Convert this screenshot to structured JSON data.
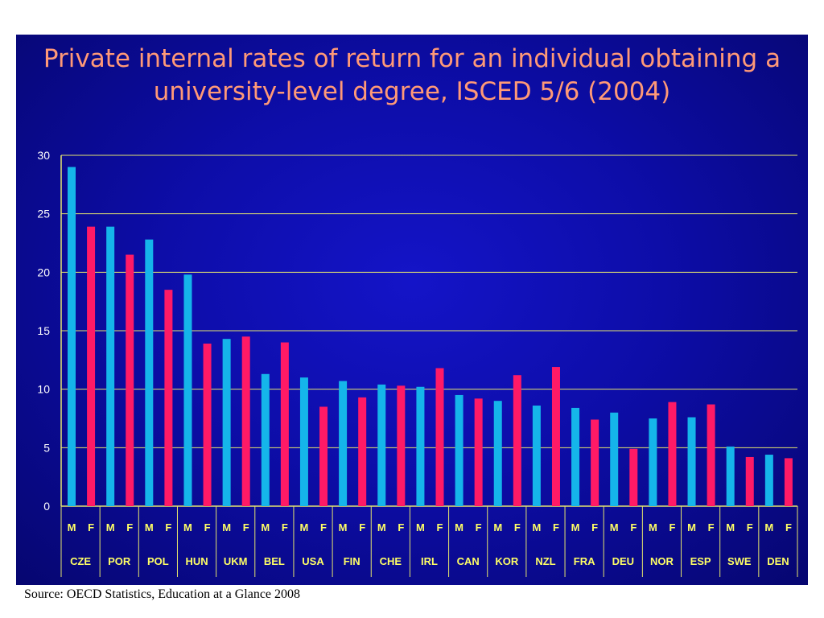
{
  "title": "Private internal rates of return for an individual obtaining a university-level degree, ISCED 5/6 (2004)",
  "source": "Source: OECD Statistics, Education at a Glance 2008",
  "colors": {
    "male": "#15b5ea",
    "female": "#ff1a66",
    "grid": "#e6e66e",
    "label": "#ffff66",
    "background": "#0b0ba6"
  },
  "chart_data": {
    "type": "bar",
    "title": "Private internal rates of return for an individual obtaining a university-level degree, ISCED 5/6 (2004)",
    "xlabel": "",
    "ylabel": "",
    "ylim": [
      0,
      30
    ],
    "yticks": [
      0,
      5,
      10,
      15,
      20,
      25,
      30
    ],
    "grid": true,
    "legend": "none",
    "subcategories": [
      "M",
      "F"
    ],
    "categories": [
      "CZE",
      "POR",
      "POL",
      "HUN",
      "UKM",
      "BEL",
      "USA",
      "FIN",
      "CHE",
      "IRL",
      "CAN",
      "KOR",
      "NZL",
      "FRA",
      "DEU",
      "NOR",
      "ESP",
      "SWE",
      "DEN"
    ],
    "series": [
      {
        "name": "M",
        "values": [
          29.0,
          23.9,
          22.8,
          19.8,
          14.3,
          11.3,
          11.0,
          10.7,
          10.4,
          10.2,
          9.5,
          9.0,
          8.6,
          8.4,
          8.0,
          7.5,
          7.6,
          5.1,
          4.4
        ]
      },
      {
        "name": "F",
        "values": [
          23.9,
          21.5,
          18.5,
          13.9,
          14.5,
          14.0,
          8.5,
          9.3,
          10.3,
          11.8,
          9.2,
          11.2,
          11.9,
          7.4,
          4.9,
          8.9,
          8.7,
          4.2,
          4.1
        ]
      }
    ]
  }
}
